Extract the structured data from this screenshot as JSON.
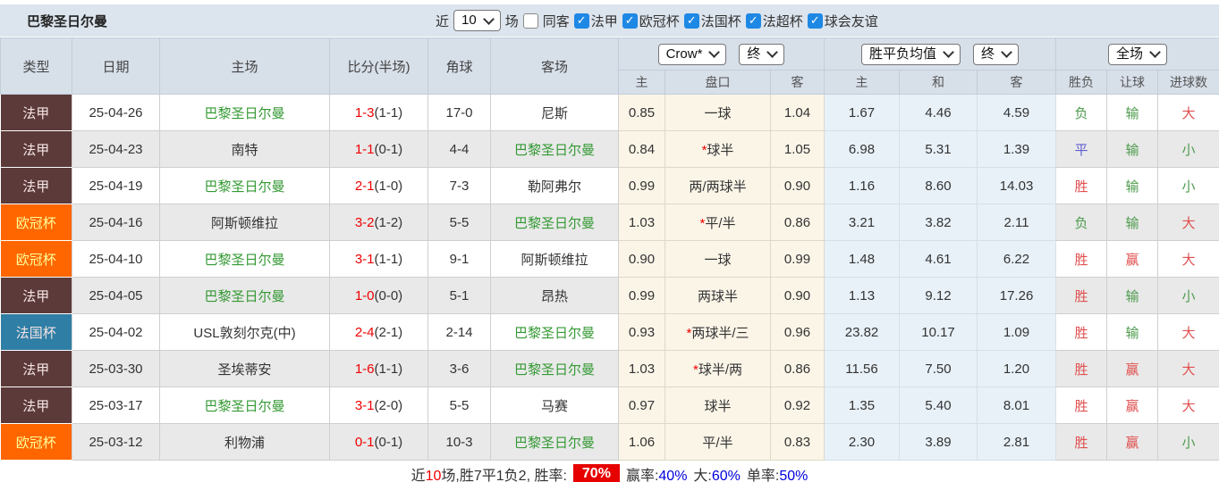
{
  "header": {
    "team": "巴黎圣日尔曼",
    "near_label": "近",
    "near_value": "10",
    "games_label": "场",
    "same_away_label": "同客",
    "filters": [
      {
        "label": "法甲",
        "checked": true
      },
      {
        "label": "欧冠杯",
        "checked": true
      },
      {
        "label": "法国杯",
        "checked": true
      },
      {
        "label": "法超杯",
        "checked": true
      },
      {
        "label": "球会友谊",
        "checked": true
      }
    ]
  },
  "table": {
    "columns": [
      "类型",
      "日期",
      "主场",
      "比分(半场)",
      "角球",
      "客场"
    ],
    "selects": {
      "company": "Crow*",
      "time1": "终",
      "avg": "胜平负均值",
      "time2": "终",
      "scope": "全场"
    },
    "subheaders": [
      "主",
      "盘口",
      "客",
      "主",
      "和",
      "客",
      "胜负",
      "让球",
      "进球数"
    ],
    "rows": [
      {
        "type": "法甲",
        "type_key": "ligue1",
        "date": "25-04-26",
        "home": "巴黎圣日尔曼",
        "home_green": true,
        "score": "1-3",
        "half": "1-1",
        "corners": "17-0",
        "away": "尼斯",
        "away_green": false,
        "odds_home": "0.85",
        "star": false,
        "handicap": "一球",
        "odds_away": "1.04",
        "avg_win": "1.67",
        "avg_draw": "4.46",
        "avg_lose": "4.59",
        "result": "负",
        "handicap_result": "输",
        "goals_result": "大"
      },
      {
        "type": "法甲",
        "type_key": "ligue1",
        "date": "25-04-23",
        "home": "南特",
        "home_green": false,
        "score": "1-1",
        "half": "0-1",
        "corners": "4-4",
        "away": "巴黎圣日尔曼",
        "away_green": true,
        "odds_home": "0.84",
        "star": true,
        "handicap": "球半",
        "odds_away": "1.05",
        "avg_win": "6.98",
        "avg_draw": "5.31",
        "avg_lose": "1.39",
        "result": "平",
        "handicap_result": "输",
        "goals_result": "小"
      },
      {
        "type": "法甲",
        "type_key": "ligue1",
        "date": "25-04-19",
        "home": "巴黎圣日尔曼",
        "home_green": true,
        "score": "2-1",
        "half": "1-0",
        "corners": "7-3",
        "away": "勒阿弗尔",
        "away_green": false,
        "odds_home": "0.99",
        "star": false,
        "handicap": "两/两球半",
        "odds_away": "0.90",
        "avg_win": "1.16",
        "avg_draw": "8.60",
        "avg_lose": "14.03",
        "result": "胜",
        "handicap_result": "输",
        "goals_result": "小"
      },
      {
        "type": "欧冠杯",
        "type_key": "ucl",
        "date": "25-04-16",
        "home": "阿斯顿维拉",
        "home_green": false,
        "score": "3-2",
        "half": "1-2",
        "corners": "5-5",
        "away": "巴黎圣日尔曼",
        "away_green": true,
        "odds_home": "1.03",
        "star": true,
        "handicap": "平/半",
        "odds_away": "0.86",
        "avg_win": "3.21",
        "avg_draw": "3.82",
        "avg_lose": "2.11",
        "result": "负",
        "handicap_result": "输",
        "goals_result": "大"
      },
      {
        "type": "欧冠杯",
        "type_key": "ucl",
        "date": "25-04-10",
        "home": "巴黎圣日尔曼",
        "home_green": true,
        "score": "3-1",
        "half": "1-1",
        "corners": "9-1",
        "away": "阿斯顿维拉",
        "away_green": false,
        "odds_home": "0.90",
        "star": false,
        "handicap": "一球",
        "odds_away": "0.99",
        "avg_win": "1.48",
        "avg_draw": "4.61",
        "avg_lose": "6.22",
        "result": "胜",
        "handicap_result": "赢",
        "goals_result": "大"
      },
      {
        "type": "法甲",
        "type_key": "ligue1",
        "date": "25-04-05",
        "home": "巴黎圣日尔曼",
        "home_green": true,
        "score": "1-0",
        "half": "0-0",
        "corners": "5-1",
        "away": "昂热",
        "away_green": false,
        "odds_home": "0.99",
        "star": false,
        "handicap": "两球半",
        "odds_away": "0.90",
        "avg_win": "1.13",
        "avg_draw": "9.12",
        "avg_lose": "17.26",
        "result": "胜",
        "handicap_result": "输",
        "goals_result": "小"
      },
      {
        "type": "法国杯",
        "type_key": "cup",
        "date": "25-04-02",
        "home": "USL敦刻尔克(中)",
        "home_green": false,
        "score": "2-4",
        "half": "2-1",
        "corners": "2-14",
        "away": "巴黎圣日尔曼",
        "away_green": true,
        "odds_home": "0.93",
        "star": true,
        "handicap": "两球半/三",
        "odds_away": "0.96",
        "avg_win": "23.82",
        "avg_draw": "10.17",
        "avg_lose": "1.09",
        "result": "胜",
        "handicap_result": "输",
        "goals_result": "大"
      },
      {
        "type": "法甲",
        "type_key": "ligue1",
        "date": "25-03-30",
        "home": "圣埃蒂安",
        "home_green": false,
        "score": "1-6",
        "half": "1-1",
        "corners": "3-6",
        "away": "巴黎圣日尔曼",
        "away_green": true,
        "odds_home": "1.03",
        "star": true,
        "handicap": "球半/两",
        "odds_away": "0.86",
        "avg_win": "11.56",
        "avg_draw": "7.50",
        "avg_lose": "1.20",
        "result": "胜",
        "handicap_result": "赢",
        "goals_result": "大"
      },
      {
        "type": "法甲",
        "type_key": "ligue1",
        "date": "25-03-17",
        "home": "巴黎圣日尔曼",
        "home_green": true,
        "score": "3-1",
        "half": "2-0",
        "corners": "5-5",
        "away": "马赛",
        "away_green": false,
        "odds_home": "0.97",
        "star": false,
        "handicap": "球半",
        "odds_away": "0.92",
        "avg_win": "1.35",
        "avg_draw": "5.40",
        "avg_lose": "8.01",
        "result": "胜",
        "handicap_result": "赢",
        "goals_result": "大"
      },
      {
        "type": "欧冠杯",
        "type_key": "ucl",
        "date": "25-03-12",
        "home": "利物浦",
        "home_green": false,
        "score": "0-1",
        "half": "0-1",
        "corners": "10-3",
        "away": "巴黎圣日尔曼",
        "away_green": true,
        "odds_home": "1.06",
        "star": false,
        "handicap": "平/半",
        "odds_away": "0.83",
        "avg_win": "2.30",
        "avg_draw": "3.89",
        "avg_lose": "2.81",
        "result": "胜",
        "handicap_result": "赢",
        "goals_result": "小"
      }
    ]
  },
  "outcome_colors": {
    "胜": "red",
    "平": "blue",
    "负": "green",
    "赢": "red",
    "输": "green",
    "走": "blue",
    "大": "red",
    "小": "green"
  },
  "summary": {
    "prefix": "近",
    "count": "10",
    "mid": "场,胜7平1负2, 胜率:",
    "win_rate": "70%",
    "win_odds_label": "赢率:",
    "win_odds": "40%",
    "big_label": "大:",
    "big": "60%",
    "single_label": "单率:",
    "single": "50%"
  },
  "colors": {
    "topbar_bg": "#dce4ed",
    "header_bg": "#d7dfe9",
    "badge_ligue1": "#5c3a3a",
    "badge_ucl": "#ff6600",
    "badge_cup": "#2f7ea5",
    "team_green": "#339933",
    "score_red": "#f00000",
    "outcome_red": "#e14f4f",
    "outcome_green": "#4e9b4e",
    "outcome_blue": "#5f5fd3",
    "handicap_bg": "#fbf5e8",
    "avg_bg": "#e8f1f8",
    "checkbox_blue": "#1e88e5",
    "rate_badge_bg": "#e60000",
    "summary_num_blue": "#0000dd"
  }
}
